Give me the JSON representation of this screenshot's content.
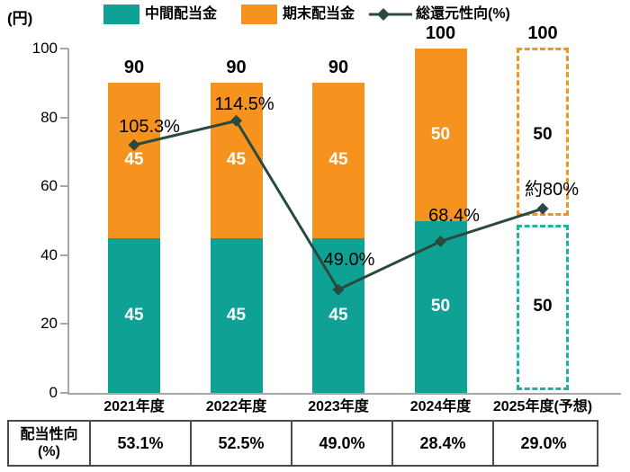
{
  "header": {
    "unit_label": "(円)",
    "legend": [
      {
        "label": "中間配当金",
        "type": "swatch",
        "color": "#0FA294"
      },
      {
        "label": "期末配当金",
        "type": "swatch",
        "color": "#F6921E"
      },
      {
        "label": "総還元性向(%)",
        "type": "line-diamond",
        "color": "#2A493F"
      }
    ]
  },
  "colors": {
    "teal": "#0FA294",
    "teal_dash": "#1CB3A0",
    "orange": "#F6921E",
    "line": "#2A493F",
    "axis": "#A6A6A6",
    "bar_label_solid": "#FFFFFF",
    "bar_label_forecast": "#000000",
    "table_border": "#4a4a4a"
  },
  "chart_data": {
    "type": "bar",
    "subtype": "stacked-bars-with-line",
    "title": "",
    "ylabel": "(円)",
    "ylim": [
      0,
      100
    ],
    "yticks": [
      0,
      20,
      40,
      60,
      80,
      100
    ],
    "grid": false,
    "legend_position": "top",
    "categories": [
      "2021年度",
      "2022年度",
      "2023年度",
      "2024年度",
      "2025年度(予想)"
    ],
    "series": [
      {
        "name": "中間配当金",
        "values": [
          45,
          45,
          45,
          50,
          50
        ]
      },
      {
        "name": "期末配当金",
        "values": [
          45,
          45,
          45,
          50,
          50
        ]
      }
    ],
    "totals": [
      90,
      90,
      90,
      100,
      100
    ],
    "forecast_index": 4,
    "line_series": {
      "name": "総還元性向(%)",
      "labels": [
        "105.3%",
        "114.5%",
        "49.0%",
        "68.4%",
        "約80%"
      ],
      "values_pct": [
        105.3,
        114.5,
        49.0,
        68.4,
        80
      ],
      "plot_values_on_left_axis": [
        72,
        79,
        30,
        44,
        53.5
      ]
    },
    "table": {
      "header_line1": "配当性向",
      "header_line2": "(%)",
      "values": [
        "53.1%",
        "52.5%",
        "49.0%",
        "28.4%",
        "29.0%"
      ]
    }
  }
}
